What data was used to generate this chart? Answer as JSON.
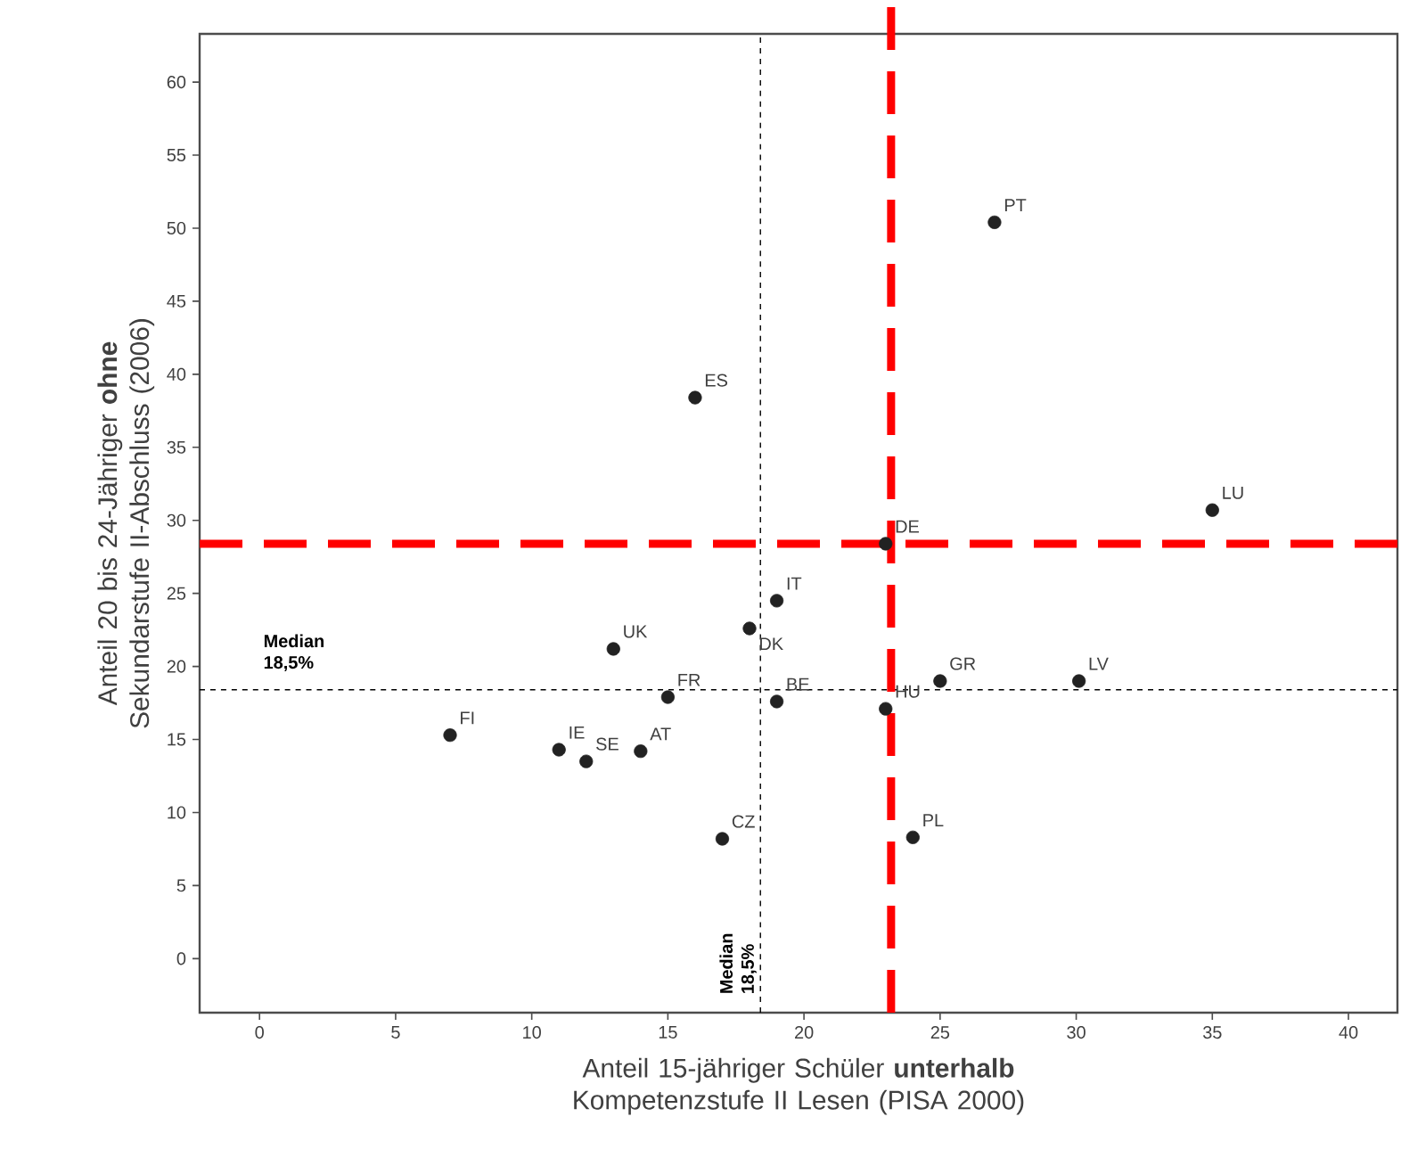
{
  "chart_data": {
    "type": "scatter",
    "xlabel": "Anteil 15-jähriger Schüler **unterhalb** Kompetenzstufe II Lesen (PISA 2000)",
    "ylabel": "Anteil 20 bis 24-Jähriger **ohne** Sekundarstufe II-Abschluss (2006)",
    "x": [
      7,
      11,
      12,
      14,
      13,
      15,
      18,
      19,
      19,
      17,
      23,
      25,
      30.1,
      24,
      23,
      16,
      27,
      35
    ],
    "series": [
      {
        "color": "#222222",
        "values": [
          15.3,
          14.3,
          13.5,
          14.2,
          21.2,
          17.9,
          22.6,
          24.5,
          17.6,
          8.2,
          17.1,
          19,
          19,
          8.3,
          28.4,
          38.4,
          50.4,
          30.7
        ]
      }
    ],
    "marker": "circle",
    "annotations": [
      {
        "text": "FI",
        "x": 7,
        "y": 15.3
      },
      {
        "text": "IE",
        "x": 11,
        "y": 14.3
      },
      {
        "text": "SE",
        "x": 12,
        "y": 13.5
      },
      {
        "text": "AT",
        "x": 14,
        "y": 14.2
      },
      {
        "text": "UK",
        "x": 13,
        "y": 21.2
      },
      {
        "text": "FR",
        "x": 15,
        "y": 17.9
      },
      {
        "text": "DK",
        "x": 18,
        "y": 22.6
      },
      {
        "text": "IT",
        "x": 19,
        "y": 24.5
      },
      {
        "text": "BE",
        "x": 19,
        "y": 17.6
      },
      {
        "text": "CZ",
        "x": 17,
        "y": 8.2
      },
      {
        "text": "HU",
        "x": 23,
        "y": 17.1
      },
      {
        "text": "GR",
        "x": 25,
        "y": 19
      },
      {
        "text": "LV",
        "x": 30.1,
        "y": 19
      },
      {
        "text": "PL",
        "x": 24,
        "y": 8.3
      },
      {
        "text": "DE",
        "x": 23,
        "y": 28.4
      },
      {
        "text": "ES",
        "x": 16,
        "y": 38.4
      },
      {
        "text": "PT",
        "x": 27,
        "y": 50.4
      },
      {
        "text": "LU",
        "x": 35,
        "y": 30.7
      }
    ],
    "ref_lines": [
      {
        "axis": "x",
        "value": 18.4,
        "label": "Median 18,5%",
        "color": "#000000",
        "line_style": "dashed"
      },
      {
        "axis": "y",
        "value": 18.4,
        "label": "Median 18,5%",
        "color": "#000000",
        "line_style": "dashed"
      },
      {
        "axis": "x",
        "value": 23.2,
        "color": "#ff0000",
        "line_style": "dashed"
      },
      {
        "axis": "y",
        "value": 28.4,
        "color": "#ff0000",
        "line_style": "dashed"
      }
    ],
    "xlim": [
      -2.2,
      41.8
    ],
    "ylim": [
      -3.7,
      63.3
    ],
    "xticks": [
      0,
      5,
      10,
      15,
      20,
      25,
      30,
      35,
      40
    ],
    "yticks": [
      0,
      5,
      10,
      15,
      20,
      25,
      30,
      35,
      40,
      45,
      50,
      55,
      60
    ],
    "grid": false
  }
}
